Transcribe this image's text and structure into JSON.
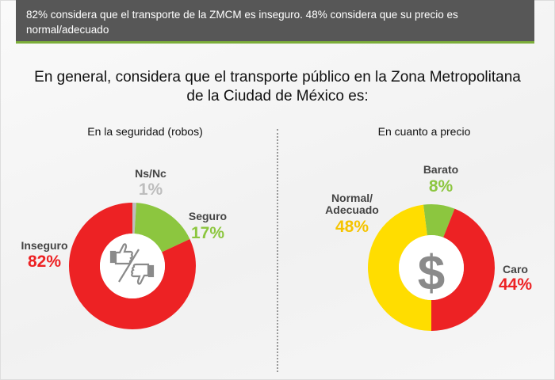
{
  "banner": {
    "text": "82% considera que el transporte de la ZMCM es inseguro. 48% considera que su precio es normal/adecuado"
  },
  "title": {
    "line1": "En general, considera que el transporte público en la Zona Metropolitana",
    "line2": "de la Ciudad de México es:"
  },
  "chart_data": [
    {
      "type": "pie",
      "donut": true,
      "title": "En la seguridad (robos)",
      "center_icon": "thumbs-up-down-icon",
      "categories": [
        "Ns/Nc",
        "Seguro",
        "Inseguro"
      ],
      "values": [
        1,
        17,
        82
      ],
      "labels": [
        "1%",
        "17%",
        "82%"
      ],
      "colors": [
        "#bdbdbd",
        "#8cc63f",
        "#ed2224"
      ]
    },
    {
      "type": "pie",
      "donut": true,
      "title": "En cuanto a precio",
      "center_icon": "dollar-sign-icon",
      "categories": [
        "Barato",
        "Caro",
        "Normal/ Adecuado"
      ],
      "values": [
        8,
        44,
        48
      ],
      "labels": [
        "8%",
        "44%",
        "48%"
      ],
      "colors": [
        "#8cc63f",
        "#ed2224",
        "#ffdd00"
      ]
    }
  ]
}
